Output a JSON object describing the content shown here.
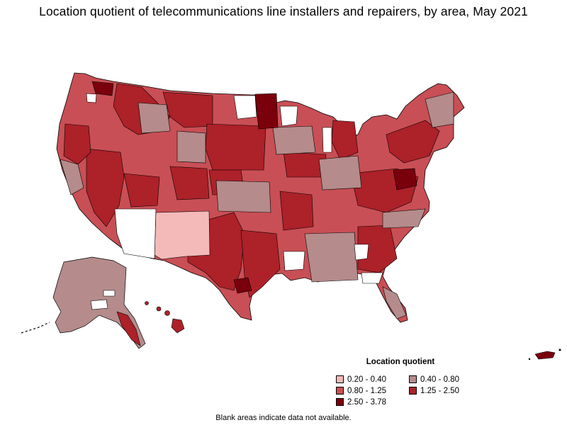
{
  "title": "Location quotient of telecommunications line installers and repairers, by area, May 2021",
  "legend": {
    "title": "Location quotient",
    "items": [
      {
        "label": "0.20 - 0.40",
        "color": "#f4b9b9"
      },
      {
        "label": "0.40 - 0.80",
        "color": "#b58b8b"
      },
      {
        "label": "0.80 - 1.25",
        "color": "#c84f55"
      },
      {
        "label": "1.25 - 2.50",
        "color": "#ad2129"
      },
      {
        "label": "2.50 - 3.78",
        "color": "#7a000c"
      }
    ]
  },
  "footnote": "Blank areas indicate data not available.",
  "colors": {
    "no_data": "#ffffff",
    "border": "#000000"
  }
}
